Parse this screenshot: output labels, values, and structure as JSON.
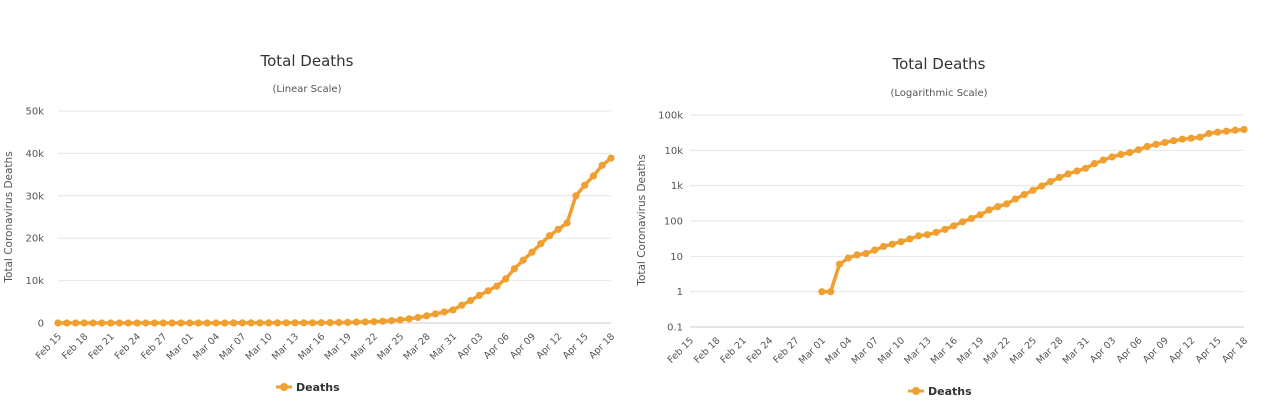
{
  "chart_data": [
    {
      "type": "line",
      "title": "Total Deaths",
      "subtitle": "(Linear Scale)",
      "ylabel": "Total Coronavirus Deaths",
      "xlabel": "",
      "yscale": "linear",
      "ylim": [
        0,
        50000
      ],
      "yticks": [
        {
          "value": 0,
          "label": "0"
        },
        {
          "value": 10000,
          "label": "10k"
        },
        {
          "value": 20000,
          "label": "20k"
        },
        {
          "value": 30000,
          "label": "30k"
        },
        {
          "value": 40000,
          "label": "40k"
        },
        {
          "value": 50000,
          "label": "50k"
        }
      ],
      "grid": true,
      "legend_position": "bottom",
      "color": "#f0a030"
    },
    {
      "type": "line",
      "title": "Total Deaths",
      "subtitle": "(Logarithmic Scale)",
      "ylabel": "Total Coronavirus Deaths",
      "xlabel": "",
      "yscale": "log",
      "ylim": [
        0.1,
        100000
      ],
      "yticks": [
        {
          "value": 0.1,
          "label": "0.1"
        },
        {
          "value": 1,
          "label": "1"
        },
        {
          "value": 10,
          "label": "10"
        },
        {
          "value": 100,
          "label": "100"
        },
        {
          "value": 1000,
          "label": "1k"
        },
        {
          "value": 10000,
          "label": "10k"
        },
        {
          "value": 100000,
          "label": "100k"
        }
      ],
      "grid": true,
      "legend_position": "bottom",
      "color": "#f0a030"
    }
  ],
  "shared": {
    "series_name": "Deaths",
    "x_tick_labels": [
      "Feb 15",
      "Feb 18",
      "Feb 21",
      "Feb 24",
      "Feb 27",
      "Mar 01",
      "Mar 04",
      "Mar 07",
      "Mar 10",
      "Mar 13",
      "Mar 16",
      "Mar 19",
      "Mar 22",
      "Mar 25",
      "Mar 28",
      "Mar 31",
      "Apr 03",
      "Apr 06",
      "Apr 09",
      "Apr 12",
      "Apr 15",
      "Apr 18"
    ],
    "x": [
      "Feb 15",
      "Feb 16",
      "Feb 17",
      "Feb 18",
      "Feb 19",
      "Feb 20",
      "Feb 21",
      "Feb 22",
      "Feb 23",
      "Feb 24",
      "Feb 25",
      "Feb 26",
      "Feb 27",
      "Feb 28",
      "Feb 29",
      "Mar 01",
      "Mar 02",
      "Mar 03",
      "Mar 04",
      "Mar 05",
      "Mar 06",
      "Mar 07",
      "Mar 08",
      "Mar 09",
      "Mar 10",
      "Mar 11",
      "Mar 12",
      "Mar 13",
      "Mar 14",
      "Mar 15",
      "Mar 16",
      "Mar 17",
      "Mar 18",
      "Mar 19",
      "Mar 20",
      "Mar 21",
      "Mar 22",
      "Mar 23",
      "Mar 24",
      "Mar 25",
      "Mar 26",
      "Mar 27",
      "Mar 28",
      "Mar 29",
      "Mar 30",
      "Mar 31",
      "Apr 01",
      "Apr 02",
      "Apr 03",
      "Apr 04",
      "Apr 05",
      "Apr 06",
      "Apr 07",
      "Apr 08",
      "Apr 09",
      "Apr 10",
      "Apr 11",
      "Apr 12",
      "Apr 13",
      "Apr 14",
      "Apr 15",
      "Apr 16",
      "Apr 17",
      "Apr 18"
    ],
    "values": [
      0,
      0,
      0,
      0,
      0,
      0,
      0,
      0,
      0,
      0,
      0,
      0,
      0,
      0,
      0,
      1,
      1,
      6,
      9,
      11,
      12,
      15,
      19,
      22,
      26,
      31,
      38,
      41,
      48,
      58,
      73,
      95,
      118,
      150,
      205,
      255,
      305,
      420,
      560,
      740,
      980,
      1300,
      1700,
      2150,
      2600,
      3100,
      4200,
      5300,
      6500,
      7600,
      8700,
      10400,
      12800,
      14800,
      16700,
      18700,
      20600,
      22100,
      23600,
      30000,
      32500,
      34700,
      37200,
      38900
    ]
  }
}
